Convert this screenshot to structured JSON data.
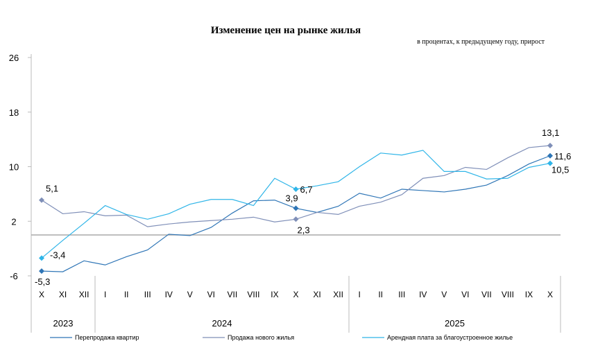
{
  "chart_data": {
    "type": "line",
    "title": "Изменение цен на рынке жилья",
    "subtitle": "в процентах, к предыдущему году, прирост",
    "ylim": [
      -6,
      26
    ],
    "yticks": [
      "26",
      "18",
      "10",
      "2",
      "-6"
    ],
    "ytick_values": [
      26,
      18,
      10,
      2,
      -6
    ],
    "categories": [
      "X",
      "XI",
      "XII",
      "I",
      "II",
      "III",
      "IV",
      "V",
      "VI",
      "VII",
      "VIII",
      "IX",
      "X",
      "XI",
      "XII",
      "I",
      "II",
      "III",
      "IV",
      "V",
      "VI",
      "VII",
      "VIII",
      "IX",
      "X"
    ],
    "years": [
      {
        "label": "2023",
        "from": 0,
        "to": 2
      },
      {
        "label": "2024",
        "from": 3,
        "to": 14
      },
      {
        "label": "2025",
        "from": 15,
        "to": 24
      }
    ],
    "grid": false,
    "legend": "bottom",
    "series": [
      {
        "name": "Перепродажа квартир",
        "color": "#2e75b6",
        "values": [
          -5.3,
          -5.4,
          -3.8,
          -4.4,
          -3.2,
          -2.2,
          0.1,
          -0.1,
          1.1,
          3.2,
          5.0,
          5.1,
          3.9,
          3.3,
          4.2,
          6.1,
          5.4,
          6.7,
          6.5,
          6.3,
          6.7,
          7.3,
          8.7,
          10.4,
          11.6
        ],
        "labels": {
          "0": "-5,3",
          "12": "3,9",
          "24": "11,6"
        }
      },
      {
        "name": "Продажа нового жилья",
        "color": "#7f8fb8",
        "values": [
          5.1,
          3.1,
          3.4,
          2.8,
          2.9,
          1.2,
          1.6,
          1.9,
          2.1,
          2.3,
          2.6,
          1.9,
          2.3,
          3.3,
          3.0,
          4.2,
          4.8,
          5.9,
          8.3,
          8.7,
          9.9,
          9.6,
          11.3,
          12.8,
          13.1
        ],
        "labels": {
          "0": "5,1",
          "12": "2,3",
          "24": "13,1"
        }
      },
      {
        "name": "Арендная плата за благоустроенное жилье",
        "color": "#2fb5e8",
        "values": [
          -3.4,
          -0.8,
          1.7,
          4.3,
          3.0,
          2.3,
          3.1,
          4.5,
          5.2,
          5.2,
          4.3,
          8.3,
          6.7,
          7.2,
          7.8,
          10.0,
          12.0,
          11.7,
          12.4,
          9.3,
          9.3,
          8.2,
          8.3,
          9.9,
          10.5
        ],
        "labels": {
          "0": "-3,4",
          "12": "6,7",
          "24": "10,5"
        }
      }
    ]
  }
}
